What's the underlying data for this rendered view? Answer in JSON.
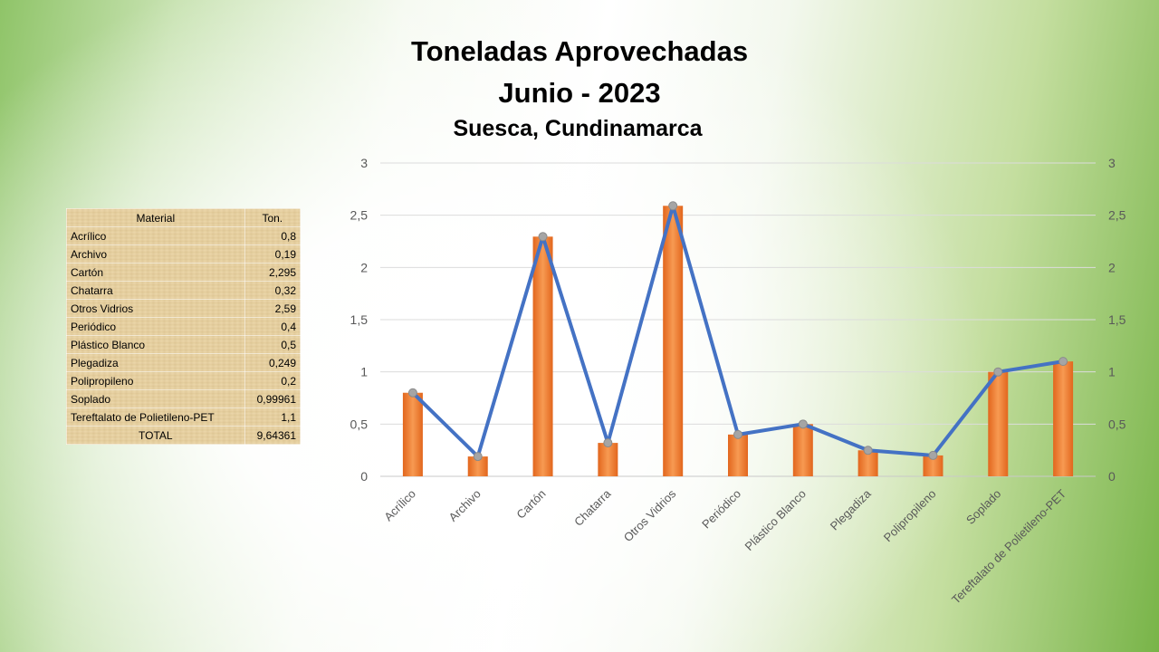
{
  "title_line1": "Toneladas Aprovechadas",
  "title_line2": "Junio - 2023",
  "subtitle": "Suesca, Cundinamarca",
  "table": {
    "headers": [
      "Material",
      "Ton."
    ],
    "rows": [
      {
        "material": "Acrílico",
        "ton": "0,8"
      },
      {
        "material": "Archivo",
        "ton": "0,19"
      },
      {
        "material": "Cartón",
        "ton": "2,295"
      },
      {
        "material": "Chatarra",
        "ton": "0,32"
      },
      {
        "material": "Otros Vidrios",
        "ton": "2,59"
      },
      {
        "material": "Periódico",
        "ton": "0,4"
      },
      {
        "material": "Plástico Blanco",
        "ton": "0,5"
      },
      {
        "material": "Plegadiza",
        "ton": "0,249"
      },
      {
        "material": "Polipropileno",
        "ton": "0,2"
      },
      {
        "material": "Soplado",
        "ton": "0,99961"
      },
      {
        "material": "Tereftalato de Polietileno-PET",
        "ton": "1,1"
      }
    ],
    "total_label": "TOTAL",
    "total_value": "9,64361"
  },
  "chart_data": {
    "type": "bar",
    "categories": [
      "Acrílico",
      "Archivo",
      "Cartón",
      "Chatarra",
      "Otros Vidrios",
      "Periódico",
      "Plástico Blanco",
      "Plegadiza",
      "Polipropileno",
      "Soplado",
      "Tereftalato de Polietileno-PET"
    ],
    "series": [
      {
        "type": "bar",
        "values": [
          0.8,
          0.19,
          2.295,
          0.32,
          2.59,
          0.4,
          0.5,
          0.249,
          0.2,
          0.99961,
          1.1
        ],
        "color": "#ED7D31"
      },
      {
        "type": "line",
        "values": [
          0.8,
          0.19,
          2.295,
          0.32,
          2.59,
          0.4,
          0.5,
          0.249,
          0.2,
          0.99961,
          1.1
        ],
        "color": "#4472C4",
        "marker_color": "#A5A5A5"
      }
    ],
    "ylim": [
      0,
      3
    ],
    "yticks": [
      "0",
      "0,5",
      "1",
      "1,5",
      "2",
      "2,5",
      "3"
    ],
    "secondary_yticks": [
      "0",
      "0,5",
      "1",
      "1,5",
      "2",
      "2,5",
      "3"
    ],
    "grid": true,
    "legend": "none"
  }
}
